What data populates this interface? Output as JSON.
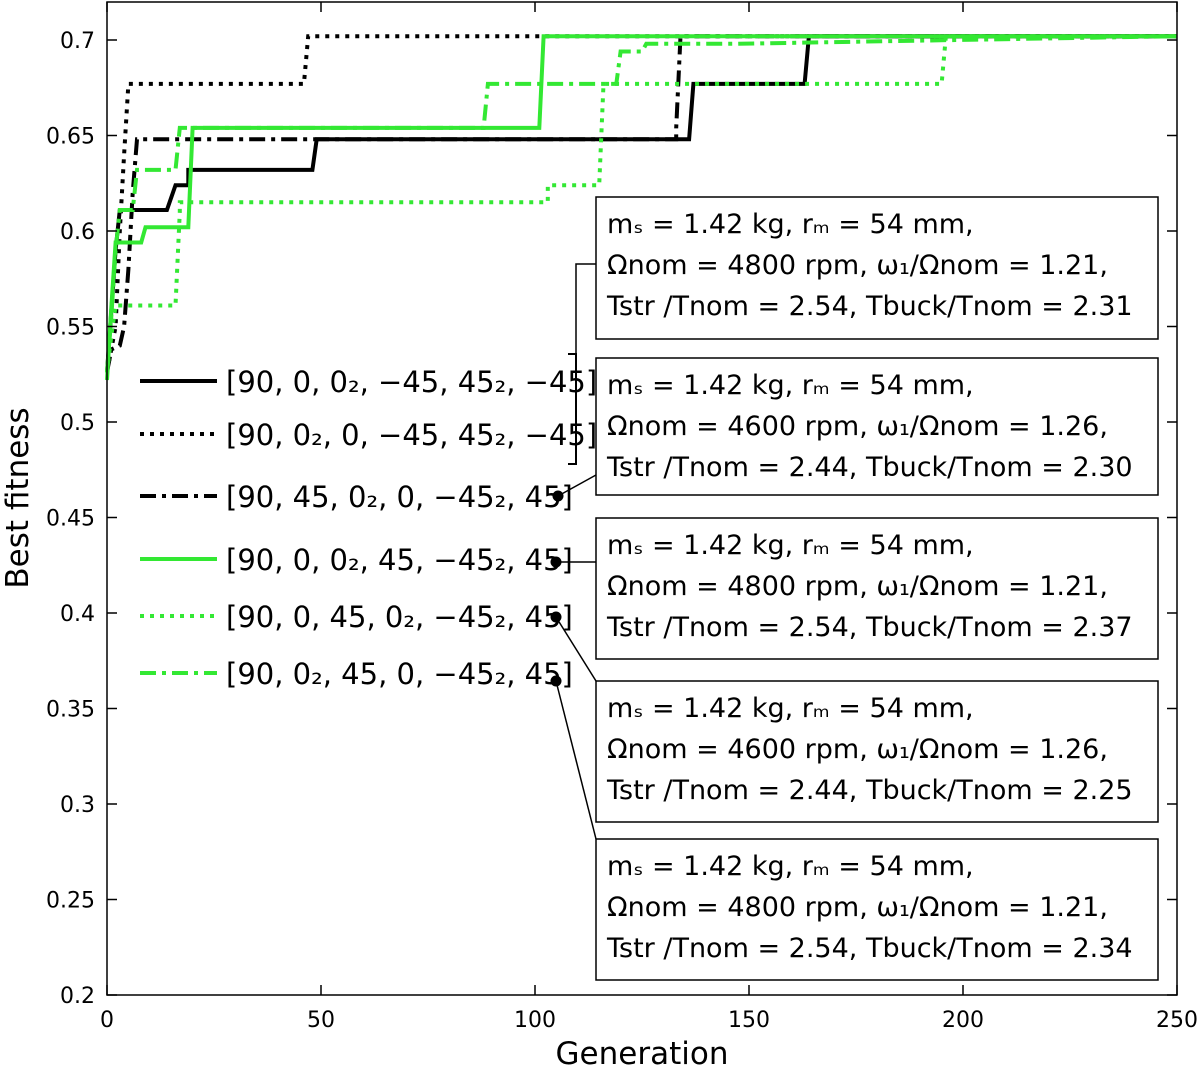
{
  "chart_data": {
    "type": "line",
    "title": "",
    "xlabel": "Generation",
    "ylabel": "Best fitness",
    "xlim": [
      0,
      250
    ],
    "ylim": [
      0.2,
      0.72
    ],
    "xticks": [
      "0",
      "50",
      "100",
      "150",
      "200",
      "250"
    ],
    "yticks": [
      "0.2",
      "0.25",
      "0.3",
      "0.35",
      "0.4",
      "0.45",
      "0.5",
      "0.55",
      "0.6",
      "0.65",
      "0.7"
    ],
    "grid": false,
    "legend_position": "center-left",
    "series": [
      {
        "name": "[90, 0, 0₂, −45, 45₂, −45]",
        "color": "#000000",
        "dash": "solid",
        "points": [
          [
            0,
            0.526
          ],
          [
            1,
            0.558
          ],
          [
            2,
            0.59
          ],
          [
            3,
            0.611
          ],
          [
            14,
            0.611
          ],
          [
            16,
            0.624
          ],
          [
            19,
            0.624
          ],
          [
            19,
            0.632
          ],
          [
            48,
            0.632
          ],
          [
            49,
            0.648
          ],
          [
            136,
            0.648
          ],
          [
            137,
            0.677
          ],
          [
            163,
            0.677
          ],
          [
            164,
            0.702
          ],
          [
            250,
            0.702
          ]
        ]
      },
      {
        "name": "[90, 0₂, 0, −45, 45₂, −45]",
        "color": "#000000",
        "dash": "dot",
        "points": [
          [
            0,
            0.526
          ],
          [
            2,
            0.55
          ],
          [
            3,
            0.6
          ],
          [
            4,
            0.64
          ],
          [
            5,
            0.677
          ],
          [
            46,
            0.677
          ],
          [
            47,
            0.702
          ],
          [
            250,
            0.702
          ]
        ]
      },
      {
        "name": "[90, 45, 0₂, 0, −45₂, 45]",
        "color": "#000000",
        "dash": "dashdot",
        "points": [
          [
            0,
            0.526
          ],
          [
            1,
            0.538
          ],
          [
            3,
            0.54
          ],
          [
            4,
            0.55
          ],
          [
            5,
            0.58
          ],
          [
            6,
            0.62
          ],
          [
            7,
            0.648
          ],
          [
            133,
            0.648
          ],
          [
            133,
            0.654
          ],
          [
            134,
            0.702
          ],
          [
            250,
            0.702
          ]
        ]
      },
      {
        "name": "[90, 0, 0₂, 45, −45₂, 45]",
        "color": "#33e833",
        "dash": "solid",
        "points": [
          [
            0,
            0.522
          ],
          [
            1,
            0.56
          ],
          [
            2,
            0.594
          ],
          [
            8,
            0.594
          ],
          [
            9,
            0.602
          ],
          [
            19,
            0.602
          ],
          [
            20,
            0.654
          ],
          [
            101,
            0.654
          ],
          [
            102,
            0.702
          ],
          [
            250,
            0.702
          ]
        ]
      },
      {
        "name": "[90, 0, 45, 0₂, −45₂, 45]",
        "color": "#33e833",
        "dash": "dot",
        "points": [
          [
            0,
            0.526
          ],
          [
            1,
            0.545
          ],
          [
            2,
            0.561
          ],
          [
            16,
            0.561
          ],
          [
            17,
            0.61
          ],
          [
            17,
            0.615
          ],
          [
            103,
            0.615
          ],
          [
            103,
            0.624
          ],
          [
            115,
            0.624
          ],
          [
            116,
            0.677
          ],
          [
            195,
            0.677
          ],
          [
            196,
            0.702
          ],
          [
            250,
            0.702
          ]
        ]
      },
      {
        "name": "[90, 0₂, 45, 0, −45₂, 45]",
        "color": "#33e833",
        "dash": "dashdot",
        "points": [
          [
            0,
            0.526
          ],
          [
            1,
            0.555
          ],
          [
            2,
            0.59
          ],
          [
            3,
            0.611
          ],
          [
            6,
            0.611
          ],
          [
            7,
            0.632
          ],
          [
            16,
            0.632
          ],
          [
            17,
            0.654
          ],
          [
            88,
            0.654
          ],
          [
            89,
            0.677
          ],
          [
            119,
            0.677
          ],
          [
            120,
            0.694
          ],
          [
            125,
            0.694
          ],
          [
            126,
            0.698
          ],
          [
            147,
            0.698
          ],
          [
            250,
            0.702
          ]
        ]
      }
    ],
    "annotations": [
      {
        "lines": [
          "mₛ = 1.42 kg, rₘ = 54 mm,",
          "Ωnom = 4800 rpm, ω₁/Ωnom = 1.21,",
          "Tstr /Tnom = 2.54, Tbuck/Tnom = 2.31"
        ],
        "refers_to": [
          0,
          1
        ]
      },
      {
        "lines": [
          "mₛ = 1.42 kg, rₘ = 54 mm,",
          "Ωnom = 4600 rpm, ω₁/Ωnom = 1.26,",
          "Tstr /Tnom = 2.44, Tbuck/Tnom = 2.30"
        ],
        "refers_to": [
          2
        ]
      },
      {
        "lines": [
          "mₛ = 1.42 kg, rₘ = 54 mm,",
          "Ωnom = 4800 rpm, ω₁/Ωnom = 1.21,",
          "Tstr /Tnom = 2.54, Tbuck/Tnom = 2.37"
        ],
        "refers_to": [
          3
        ]
      },
      {
        "lines": [
          "mₛ = 1.42 kg, rₘ = 54 mm,",
          "Ωnom = 4600 rpm, ω₁/Ωnom = 1.26,",
          "Tstr /Tnom = 2.44, Tbuck/Tnom = 2.25"
        ],
        "refers_to": [
          4
        ]
      },
      {
        "lines": [
          "mₛ = 1.42 kg, rₘ = 54 mm,",
          "Ωnom = 4800 rpm, ω₁/Ωnom = 1.21,",
          "Tstr /Tnom = 2.54, Tbuck/Tnom = 2.34"
        ],
        "refers_to": [
          5
        ]
      }
    ]
  }
}
